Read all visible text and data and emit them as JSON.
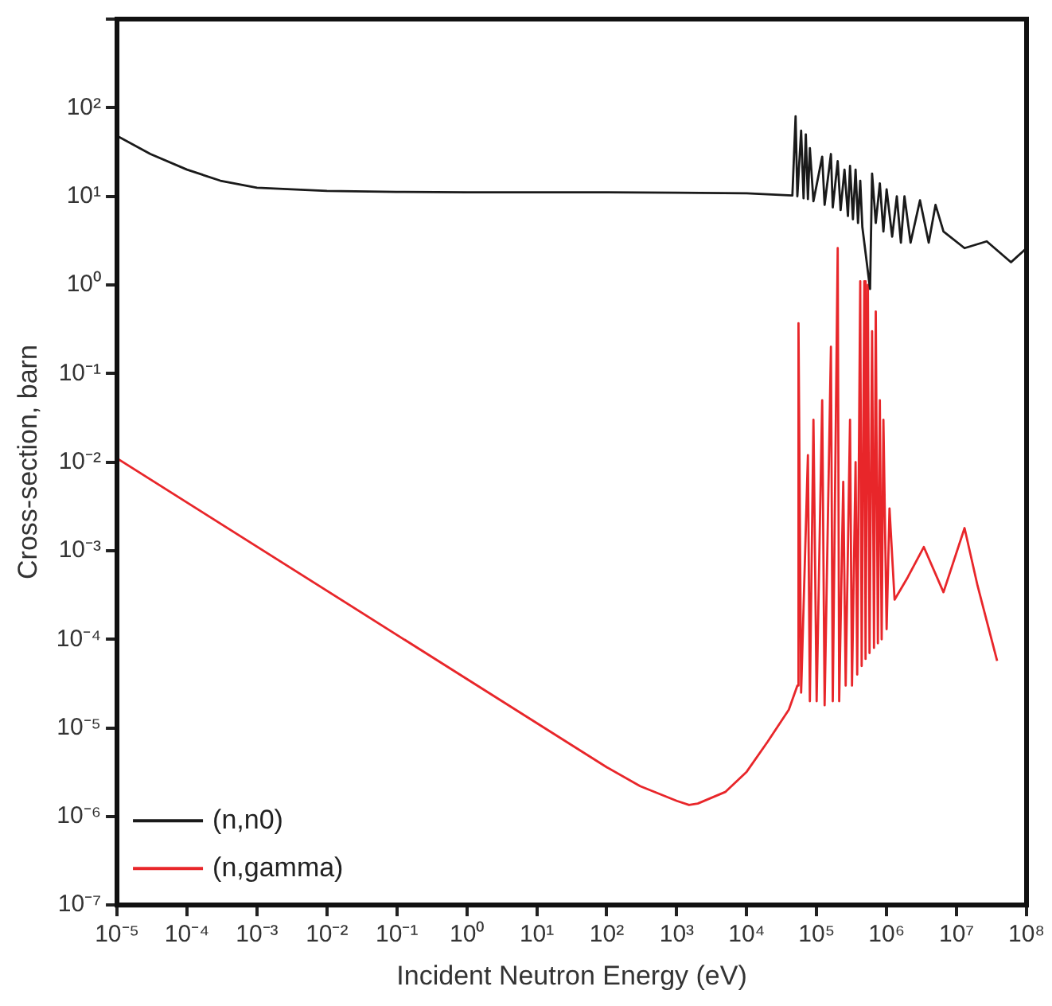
{
  "chart_data": {
    "type": "line",
    "xlabel": "Incident Neutron Energy (eV)",
    "ylabel": "Cross-section, barn",
    "log": "xy",
    "grid": false,
    "legend": "bottom left",
    "marker": "none",
    "line_style": "solid",
    "xlim": [
      1e-05,
      100000000.0
    ],
    "ylim": [
      1e-07,
      1000
    ],
    "xticks": [
      {
        "value": 1e-05,
        "label": "10⁻⁵"
      },
      {
        "value": 0.0001,
        "label": "10⁻⁴"
      },
      {
        "value": 0.001,
        "label": "10⁻³"
      },
      {
        "value": 0.01,
        "label": "10⁻²"
      },
      {
        "value": 0.1,
        "label": "10⁻¹"
      },
      {
        "value": 1,
        "label": "10⁰"
      },
      {
        "value": 10,
        "label": "10¹"
      },
      {
        "value": 100,
        "label": "10²"
      },
      {
        "value": 1000,
        "label": "10³"
      },
      {
        "value": 10000,
        "label": "10⁴"
      },
      {
        "value": 100000,
        "label": "10⁵"
      },
      {
        "value": 1000000,
        "label": "10⁶"
      },
      {
        "value": 10000000,
        "label": "10⁷"
      },
      {
        "value": 100000000,
        "label": "10⁸"
      }
    ],
    "yticks": [
      {
        "value": 1e-07,
        "label": "10⁻⁷"
      },
      {
        "value": 1e-06,
        "label": "10⁻⁶"
      },
      {
        "value": 1e-05,
        "label": "10⁻⁵"
      },
      {
        "value": 0.0001,
        "label": "10⁻⁴"
      },
      {
        "value": 0.001,
        "label": "10⁻³"
      },
      {
        "value": 0.01,
        "label": "10⁻²"
      },
      {
        "value": 0.1,
        "label": "10⁻¹"
      },
      {
        "value": 1,
        "label": "10⁰"
      },
      {
        "value": 10,
        "label": "10¹"
      },
      {
        "value": 100,
        "label": "10²"
      },
      {
        "value": 1000,
        "label": null
      }
    ],
    "series": [
      {
        "name": "(n,n0)",
        "color": "#1a1a1a",
        "x": [
          1e-05,
          3e-05,
          0.0001,
          0.0003,
          0.001,
          0.01,
          0.1,
          1,
          10,
          100,
          1000,
          10000,
          45000,
          50000,
          53000,
          60000,
          65000,
          70000,
          75000,
          80000,
          90000,
          120000,
          130000,
          160000,
          170000,
          200000,
          220000,
          250000,
          280000,
          300000,
          330000,
          360000,
          390000,
          420000,
          450000,
          580000,
          620000,
          700000,
          800000,
          900000,
          1000000,
          1200000,
          1400000,
          1600000,
          1800000,
          2200000,
          3000000,
          4000000,
          5000000,
          6500000,
          13000000,
          27000000,
          60000000,
          100000000
        ],
        "values": [
          48,
          30,
          20,
          15,
          12.5,
          11.5,
          11.2,
          11.1,
          11.1,
          11.1,
          11,
          10.8,
          10.2,
          80,
          10,
          55,
          9.5,
          50,
          9.3,
          35,
          8.8,
          28,
          8,
          30,
          7.5,
          25,
          7,
          20,
          6,
          22,
          5.5,
          20,
          5,
          15,
          4.5,
          0.9,
          18,
          5,
          14,
          4,
          12,
          3.5,
          10,
          3,
          10,
          3,
          9,
          3,
          8,
          4,
          2.6,
          3.1,
          1.8,
          2.6
        ]
      },
      {
        "name": "(n,gamma)",
        "color": "#e8262a",
        "x": [
          1e-05,
          100,
          300,
          1000,
          1500,
          2000,
          5000,
          10000,
          20000,
          40000,
          53000,
          55000,
          60000,
          75000,
          80000,
          90000,
          100000,
          120000,
          130000,
          160000,
          170000,
          200000,
          210000,
          240000,
          260000,
          300000,
          320000,
          360000,
          380000,
          420000,
          440000,
          480000,
          500000,
          540000,
          570000,
          620000,
          660000,
          700000,
          750000,
          800000,
          850000,
          900000,
          1000000,
          1100000,
          1300000,
          2000000,
          3400000,
          6500000,
          13000000,
          20000000,
          38000000
        ],
        "values": [
          0.011,
          3.6e-06,
          2.2e-06,
          1.5e-06,
          1.35e-06,
          1.4e-06,
          1.9e-06,
          3.2e-06,
          7e-06,
          1.6e-05,
          3e-05,
          0.37,
          2.5e-05,
          0.012,
          2e-05,
          0.03,
          2e-05,
          0.05,
          1.8e-05,
          0.2,
          2e-05,
          2.6,
          2e-05,
          0.006,
          3e-05,
          0.03,
          3e-05,
          0.01,
          4e-05,
          1.1,
          5e-05,
          1.1,
          6e-05,
          1,
          7e-05,
          0.3,
          8e-05,
          0.5,
          9e-05,
          0.05,
          0.0001,
          0.03,
          0.00013,
          0.003,
          0.00028,
          0.0005,
          0.0011,
          0.00034,
          0.0018,
          0.0004,
          5.7e-05
        ]
      }
    ]
  }
}
